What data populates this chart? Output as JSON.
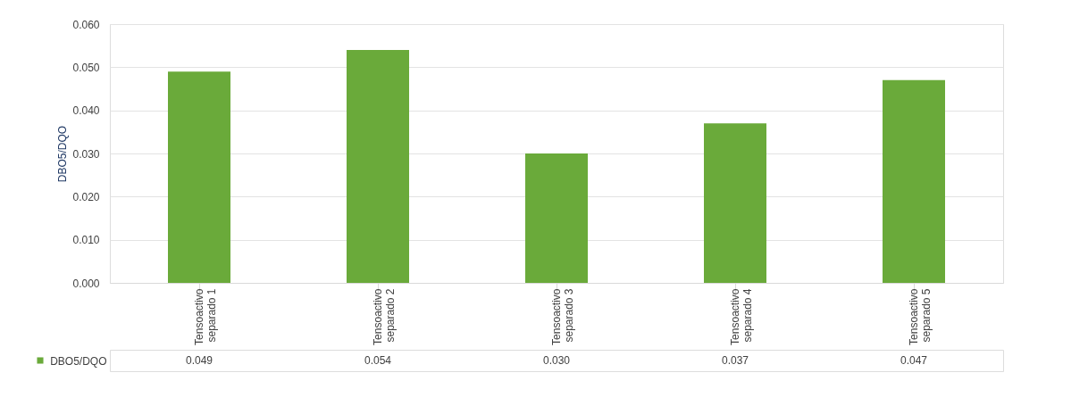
{
  "chart_data": {
    "type": "bar",
    "ylabel": "DBO5/DQO",
    "categories": [
      "Tensoactivo separado 1",
      "Tensoactivo separado 2",
      "Tensoactivo separado 3",
      "Tensoactivo separado 4",
      "Tensoactivo separado 5"
    ],
    "series": [
      {
        "name": "DBO5/DQO",
        "color": "#6aaa3a",
        "values": [
          0.049,
          0.054,
          0.03,
          0.037,
          0.047
        ],
        "value_labels": [
          "0.049",
          "0.054",
          "0.030",
          "0.037",
          "0.047"
        ]
      }
    ],
    "ylim": [
      0,
      0.06
    ],
    "yticks": [
      {
        "value": 0,
        "label": "0.000"
      },
      {
        "value": 0.01,
        "label": "0.010"
      },
      {
        "value": 0.02,
        "label": "0.020"
      },
      {
        "value": 0.03,
        "label": "0.030"
      },
      {
        "value": 0.04,
        "label": "0.040"
      },
      {
        "value": 0.05,
        "label": "0.050"
      },
      {
        "value": 0.06,
        "label": "0.060"
      }
    ],
    "grid": "y",
    "legend": "bottom left"
  }
}
